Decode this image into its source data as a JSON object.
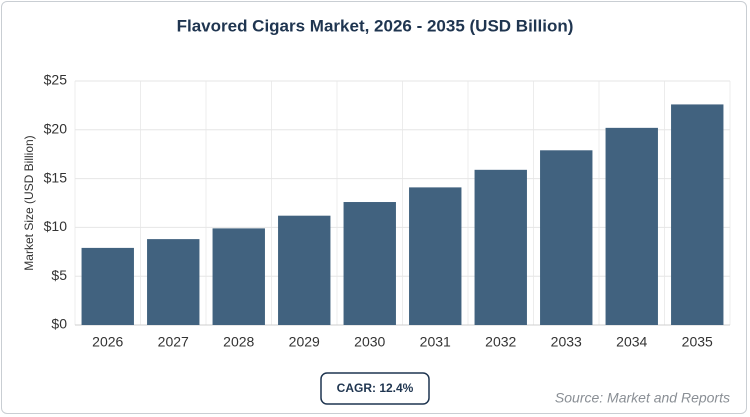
{
  "chart_data": {
    "type": "bar",
    "title": "Flavored Cigars Market, 2026 - 2035 (USD Billion)",
    "y_label": "Market Size (USD Billion)",
    "categories": [
      "2026",
      "2027",
      "2028",
      "2029",
      "2030",
      "2031",
      "2032",
      "2033",
      "2034",
      "2035"
    ],
    "values": [
      7.9,
      8.8,
      9.9,
      11.2,
      12.6,
      14.1,
      15.9,
      17.9,
      20.2,
      22.6
    ],
    "color": "#41627f",
    "ylim": [
      0,
      25
    ],
    "yticks": [
      {
        "value": 0,
        "label": "$0"
      },
      {
        "value": 5,
        "label": "$5"
      },
      {
        "value": 10,
        "label": "$10"
      },
      {
        "value": 15,
        "label": "$15"
      },
      {
        "value": 20,
        "label": "$20"
      },
      {
        "value": 25,
        "label": "$25"
      }
    ],
    "grid": true,
    "annotation": "CAGR: 12.4%",
    "source": "Source: Market and Reports"
  }
}
